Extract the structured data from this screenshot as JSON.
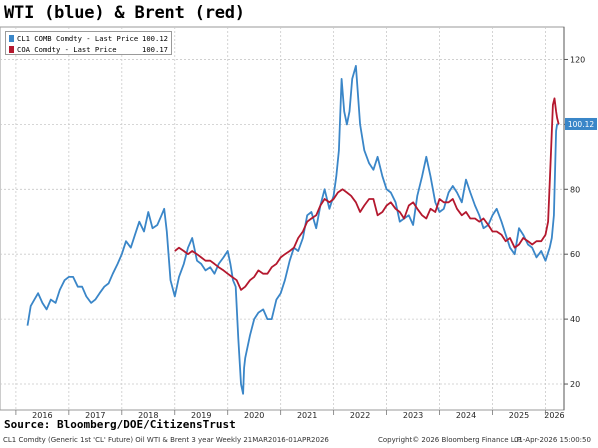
{
  "title": "WTI (blue) & Brent (red)",
  "source": "Source: Bloomberg/DOE/CitizensTrust",
  "footer": {
    "description": "CL1 Comdty (Generic 1st 'CL' Future) Oil WTI & Brent 3 year Weekly 21MAR2016-01APR2026",
    "copyright": "Copyright© 2026 Bloomberg Finance L.P.",
    "timestamp": "01-Apr-2026 15:00:50"
  },
  "colors": {
    "wti": "#3a86c8",
    "brent": "#b4182e",
    "grid": "#c9c9c9"
  },
  "chart_data": {
    "type": "line",
    "x_unit": "year (decimal)",
    "xlim": [
      2015.7,
      2026.35
    ],
    "ylim": [
      12,
      130
    ],
    "y_ticks": [
      20,
      40,
      60,
      80,
      100,
      120
    ],
    "x_tick_labels": [
      "2016",
      "2017",
      "2018",
      "2019",
      "2020",
      "2021",
      "2022",
      "2023",
      "2024",
      "2025",
      "2026"
    ],
    "grid": true,
    "axis_position": "right",
    "legend_position": "top-left",
    "series": [
      {
        "name": "CL1 COMB Comdty - Last Price",
        "last_value": "100.12",
        "color": "#3a86c8",
        "x": [
          2016.22,
          2016.28,
          2016.35,
          2016.42,
          2016.5,
          2016.58,
          2016.66,
          2016.75,
          2016.83,
          2016.92,
          2017.0,
          2017.08,
          2017.17,
          2017.25,
          2017.33,
          2017.42,
          2017.5,
          2017.58,
          2017.67,
          2017.75,
          2017.83,
          2017.92,
          2018.0,
          2018.08,
          2018.17,
          2018.25,
          2018.33,
          2018.42,
          2018.5,
          2018.58,
          2018.67,
          2018.75,
          2018.8,
          2018.85,
          2018.92,
          2019.0,
          2019.08,
          2019.17,
          2019.25,
          2019.33,
          2019.42,
          2019.5,
          2019.58,
          2019.67,
          2019.75,
          2019.83,
          2019.92,
          2020.0,
          2020.05,
          2020.1,
          2020.15,
          2020.2,
          2020.25,
          2020.29,
          2020.31,
          2020.33,
          2020.42,
          2020.5,
          2020.58,
          2020.67,
          2020.75,
          2020.83,
          2020.92,
          2021.0,
          2021.08,
          2021.17,
          2021.25,
          2021.33,
          2021.42,
          2021.5,
          2021.58,
          2021.67,
          2021.75,
          2021.83,
          2021.92,
          2022.0,
          2022.05,
          2022.1,
          2022.15,
          2022.2,
          2022.25,
          2022.3,
          2022.35,
          2022.42,
          2022.5,
          2022.58,
          2022.67,
          2022.75,
          2022.83,
          2022.92,
          2023.0,
          2023.08,
          2023.17,
          2023.25,
          2023.33,
          2023.42,
          2023.5,
          2023.58,
          2023.67,
          2023.75,
          2023.83,
          2023.92,
          2024.0,
          2024.08,
          2024.17,
          2024.25,
          2024.33,
          2024.42,
          2024.5,
          2024.58,
          2024.67,
          2024.75,
          2024.83,
          2024.92,
          2025.0,
          2025.08,
          2025.17,
          2025.25,
          2025.33,
          2025.42,
          2025.5,
          2025.58,
          2025.67,
          2025.75,
          2025.83,
          2025.92,
          2026.0,
          2026.08,
          2026.12,
          2026.16,
          2026.2,
          2026.22,
          2026.25
        ],
        "values": [
          38,
          44,
          46,
          48,
          45,
          43,
          46,
          45,
          49,
          52,
          53,
          53,
          50,
          50,
          47,
          45,
          46,
          48,
          50,
          51,
          54,
          57,
          60,
          64,
          62,
          66,
          70,
          67,
          73,
          68,
          69,
          72,
          74,
          67,
          52,
          47,
          53,
          57,
          62,
          65,
          58,
          57,
          55,
          56,
          54,
          57,
          59,
          61,
          57,
          52,
          50,
          34,
          20,
          17,
          25,
          28,
          35,
          40,
          42,
          43,
          40,
          40,
          46,
          48,
          52,
          58,
          62,
          61,
          65,
          72,
          73,
          68,
          75,
          80,
          74,
          78,
          84,
          92,
          114,
          104,
          100,
          104,
          114,
          118,
          100,
          92,
          88,
          86,
          90,
          84,
          80,
          79,
          76,
          70,
          71,
          72,
          69,
          78,
          84,
          90,
          84,
          76,
          73,
          74,
          79,
          81,
          79,
          76,
          83,
          79,
          75,
          72,
          68,
          69,
          72,
          74,
          70,
          66,
          62,
          60,
          68,
          66,
          63,
          62,
          59,
          61,
          58,
          62,
          65,
          72,
          98,
          100,
          100
        ]
      },
      {
        "name": "COA Comdty - Last Price",
        "last_value": "100.17",
        "color": "#b4182e",
        "x": [
          2019.0,
          2019.08,
          2019.17,
          2019.25,
          2019.33,
          2019.42,
          2019.5,
          2019.58,
          2019.67,
          2019.75,
          2019.83,
          2019.92,
          2020.0,
          2020.08,
          2020.17,
          2020.25,
          2020.33,
          2020.42,
          2020.5,
          2020.58,
          2020.67,
          2020.75,
          2020.83,
          2020.92,
          2021.0,
          2021.08,
          2021.17,
          2021.25,
          2021.33,
          2021.42,
          2021.5,
          2021.58,
          2021.67,
          2021.75,
          2021.83,
          2021.92,
          2022.0,
          2022.08,
          2022.17,
          2022.25,
          2022.33,
          2022.42,
          2022.5,
          2022.58,
          2022.67,
          2022.75,
          2022.83,
          2022.92,
          2023.0,
          2023.08,
          2023.17,
          2023.25,
          2023.33,
          2023.42,
          2023.5,
          2023.58,
          2023.67,
          2023.75,
          2023.83,
          2023.92,
          2024.0,
          2024.08,
          2024.17,
          2024.25,
          2024.33,
          2024.42,
          2024.5,
          2024.58,
          2024.67,
          2024.75,
          2024.83,
          2024.92,
          2025.0,
          2025.08,
          2025.17,
          2025.25,
          2025.33,
          2025.42,
          2025.5,
          2025.58,
          2025.67,
          2025.75,
          2025.83,
          2025.92,
          2026.0,
          2026.05,
          2026.1,
          2026.14,
          2026.17,
          2026.2,
          2026.22,
          2026.25
        ],
        "values": [
          61,
          62,
          61,
          60,
          61,
          60,
          59,
          58,
          58,
          57,
          56,
          55,
          54,
          53,
          52,
          49,
          50,
          52,
          53,
          55,
          54,
          54,
          56,
          57,
          59,
          60,
          61,
          62,
          65,
          67,
          70,
          71,
          72,
          75,
          77,
          76,
          77,
          79,
          80,
          79,
          78,
          76,
          73,
          75,
          77,
          77,
          72,
          73,
          75,
          76,
          74,
          73,
          71,
          75,
          76,
          74,
          72,
          71,
          74,
          73,
          77,
          76,
          76,
          77,
          74,
          72,
          73,
          71,
          71,
          70,
          71,
          69,
          67,
          67,
          66,
          64,
          65,
          62,
          63,
          65,
          64,
          63,
          64,
          64,
          66,
          70,
          90,
          106,
          108,
          104,
          102,
          100
        ]
      }
    ]
  }
}
